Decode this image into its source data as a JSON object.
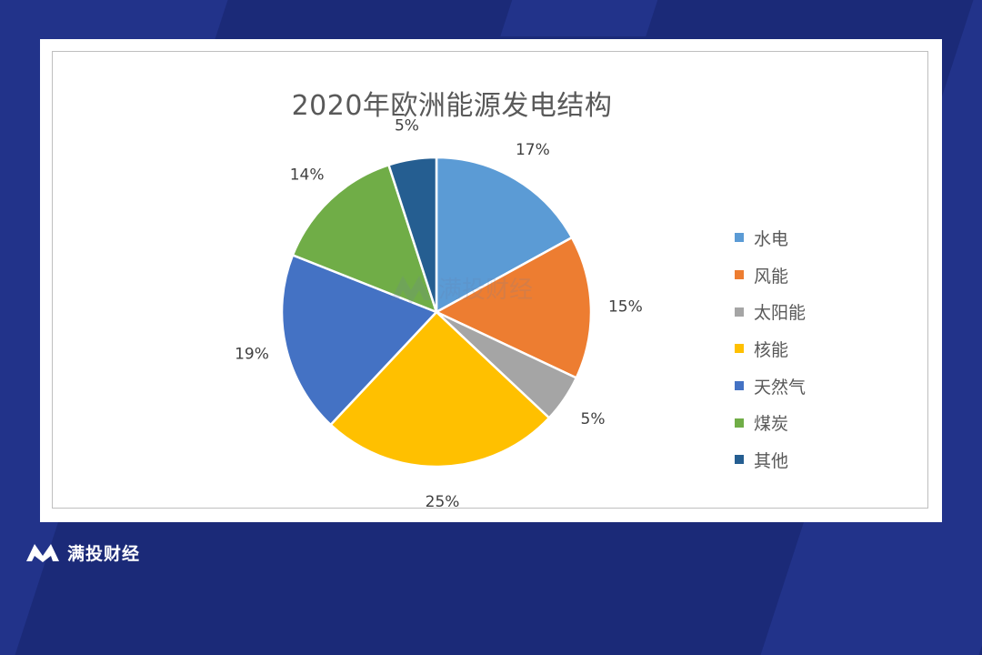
{
  "chart_data": {
    "type": "pie",
    "title": "2020年欧洲能源发电结构",
    "categories": [
      "水电",
      "风能",
      "太阳能",
      "核能",
      "天然气",
      "煤炭",
      "其他"
    ],
    "values": [
      17,
      15,
      5,
      25,
      19,
      14,
      5
    ],
    "labels": [
      "17%",
      "15%",
      "5%",
      "25%",
      "19%",
      "14%",
      "5%"
    ],
    "colors": [
      "#5b9bd5",
      "#ed7d31",
      "#a5a5a5",
      "#ffc000",
      "#4472c4",
      "#70ad47",
      "#255e91"
    ],
    "legend_position": "right"
  },
  "watermark": {
    "text": "满投财经"
  },
  "footer": {
    "brand": "满投财经"
  }
}
